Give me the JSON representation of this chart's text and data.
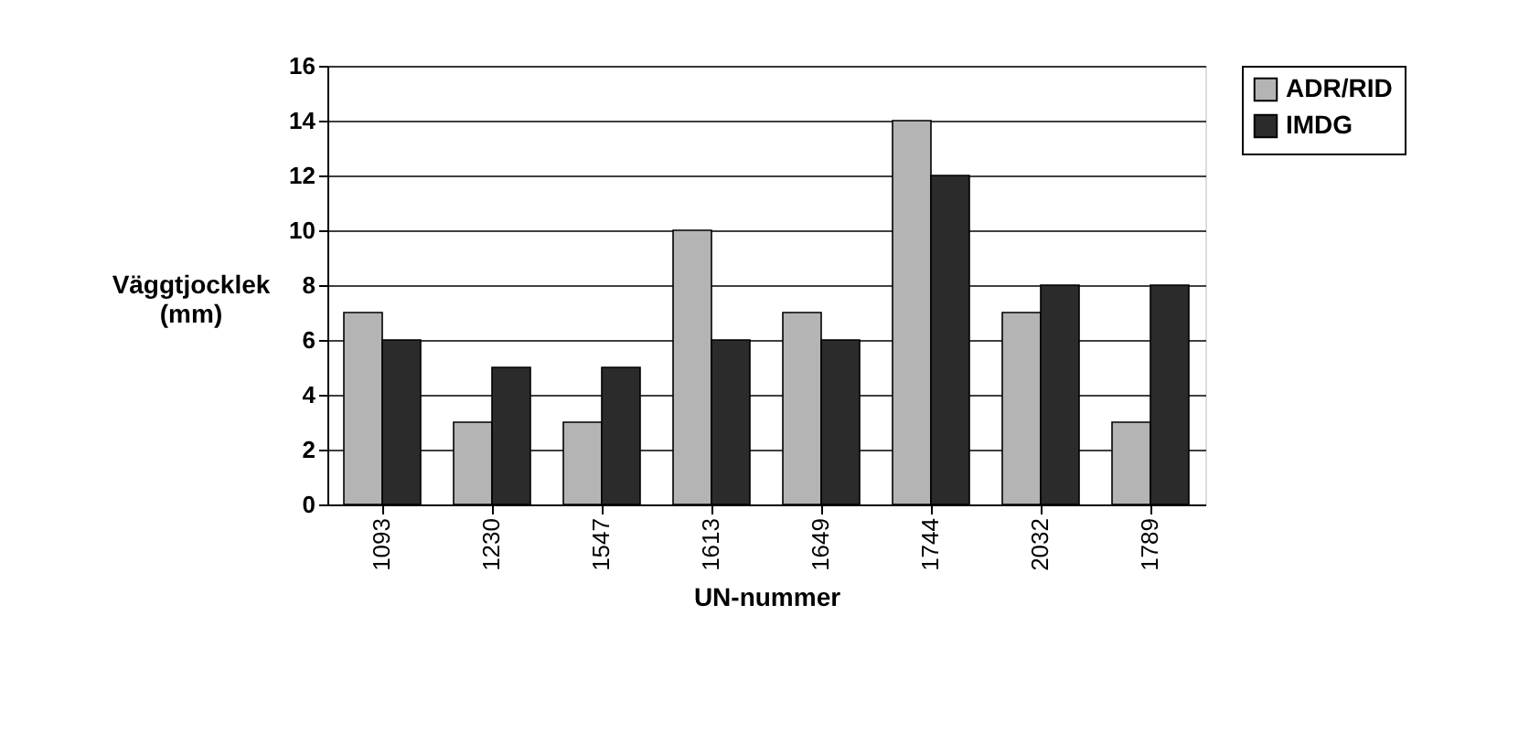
{
  "chart_data": {
    "type": "bar",
    "xlabel": "UN-nummer",
    "ylabel": "Väggtjocklek (mm)",
    "categories": [
      "1093",
      "1230",
      "1547",
      "1613",
      "1649",
      "1744",
      "2032",
      "1789"
    ],
    "series": [
      {
        "name": "ADR/RID",
        "color": "#b4b4b4",
        "values": [
          7,
          3,
          3,
          10,
          7,
          14,
          7,
          3
        ]
      },
      {
        "name": "IMDG",
        "color": "#2b2b2b",
        "values": [
          6,
          5,
          5,
          6,
          6,
          12,
          8,
          8
        ]
      }
    ],
    "ylim": [
      0,
      16
    ],
    "yticks": [
      0,
      2,
      4,
      6,
      8,
      10,
      12,
      14,
      16
    ],
    "grid": "y",
    "legend": "right"
  }
}
